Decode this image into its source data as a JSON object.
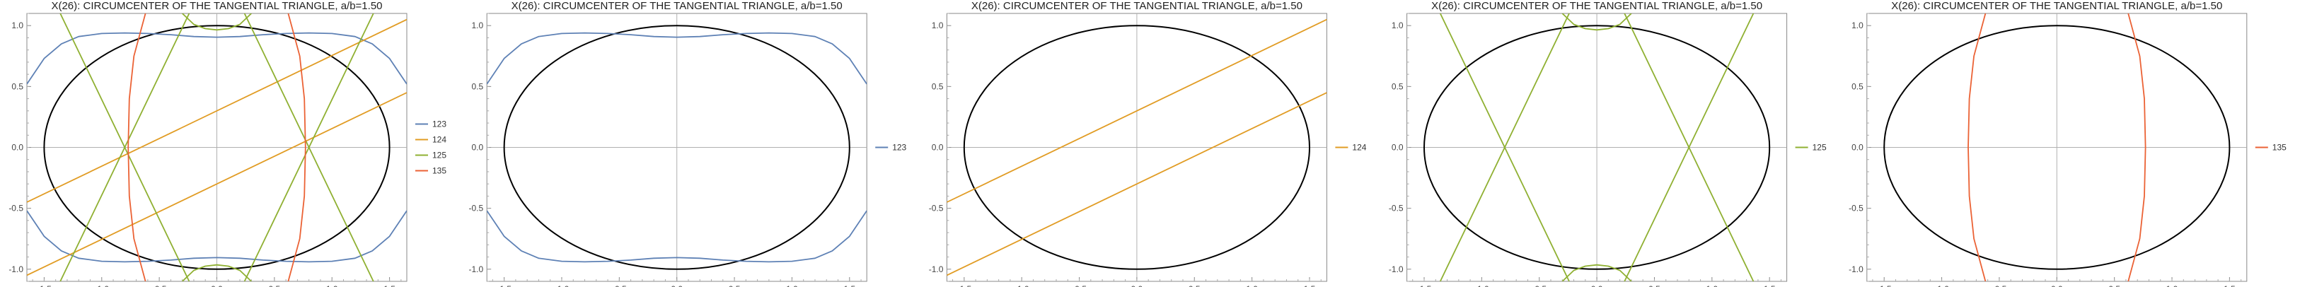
{
  "chart_data": [
    {
      "type": "line",
      "title": "X(26): CIRCUMCENTER OF THE TANGENTIAL TRIANGLE, a/b=1.50",
      "xlabel": "",
      "ylabel": "",
      "xlim": [
        -1.65,
        1.65
      ],
      "ylim": [
        -1.1,
        1.1
      ],
      "xticks": [
        "-1.5",
        "-1.0",
        "-0.5",
        "0.0",
        "0.5",
        "1.0",
        "1.5"
      ],
      "yticks": [
        "-1.0",
        "-0.5",
        "0.0",
        "0.5",
        "1.0"
      ],
      "grid": false,
      "legend": "right",
      "ellipse": {
        "a": 1.5,
        "b": 1.0,
        "color": "#000000"
      },
      "series": [
        {
          "name": "123",
          "color": "#5E81B5",
          "curve": "upper",
          "points": [
            [
              -1.65,
              0.52
            ],
            [
              -1.5,
              0.73
            ],
            [
              -1.35,
              0.85
            ],
            [
              -1.2,
              0.91
            ],
            [
              -1.0,
              0.935
            ],
            [
              -0.8,
              0.94
            ],
            [
              -0.6,
              0.935
            ],
            [
              -0.4,
              0.925
            ],
            [
              -0.2,
              0.91
            ],
            [
              0.0,
              0.905
            ],
            [
              0.2,
              0.91
            ],
            [
              0.4,
              0.925
            ],
            [
              0.6,
              0.935
            ],
            [
              0.8,
              0.94
            ],
            [
              1.0,
              0.935
            ],
            [
              1.2,
              0.91
            ],
            [
              1.35,
              0.85
            ],
            [
              1.5,
              0.73
            ],
            [
              1.65,
              0.52
            ]
          ]
        },
        {
          "name": "123",
          "color": "#5E81B5",
          "curve": "lower",
          "points": [
            [
              -1.65,
              -0.52
            ],
            [
              -1.5,
              -0.73
            ],
            [
              -1.35,
              -0.85
            ],
            [
              -1.2,
              -0.91
            ],
            [
              -1.0,
              -0.935
            ],
            [
              -0.8,
              -0.94
            ],
            [
              -0.6,
              -0.935
            ],
            [
              -0.4,
              -0.925
            ],
            [
              -0.2,
              -0.91
            ],
            [
              0.0,
              -0.905
            ],
            [
              0.2,
              -0.91
            ],
            [
              0.4,
              -0.925
            ],
            [
              0.6,
              -0.935
            ],
            [
              0.8,
              -0.94
            ],
            [
              1.0,
              -0.935
            ],
            [
              1.2,
              -0.91
            ],
            [
              1.35,
              -0.85
            ],
            [
              1.5,
              -0.73
            ],
            [
              1.65,
              -0.52
            ]
          ]
        },
        {
          "name": "124",
          "color": "#E19C24",
          "points": [
            [
              -1.65,
              -0.45
            ],
            [
              1.65,
              1.05
            ]
          ]
        },
        {
          "name": "124",
          "color": "#E19C24",
          "points": [
            [
              -1.65,
              -1.05
            ],
            [
              1.65,
              0.45
            ]
          ]
        },
        {
          "name": "125",
          "color": "#8FB032",
          "points": [
            [
              -1.36,
              -1.1
            ],
            [
              -0.24,
              1.1
            ]
          ]
        },
        {
          "name": "125",
          "color": "#8FB032",
          "points": [
            [
              -1.36,
              1.1
            ],
            [
              -0.24,
              -1.1
            ]
          ]
        },
        {
          "name": "125",
          "color": "#8FB032",
          "points": [
            [
              1.36,
              -1.1
            ],
            [
              0.24,
              1.1
            ]
          ]
        },
        {
          "name": "125",
          "color": "#8FB032",
          "points": [
            [
              1.36,
              1.1
            ],
            [
              0.24,
              -1.1
            ]
          ]
        },
        {
          "name": "125",
          "color": "#8FB032",
          "points": [
            [
              -0.3,
              1.1
            ],
            [
              -0.2,
              1.01
            ],
            [
              -0.1,
              0.975
            ],
            [
              0.0,
              0.965
            ],
            [
              0.1,
              0.975
            ],
            [
              0.2,
              1.01
            ],
            [
              0.3,
              1.1
            ]
          ]
        },
        {
          "name": "125",
          "color": "#8FB032",
          "points": [
            [
              -0.3,
              -1.1
            ],
            [
              -0.2,
              -1.01
            ],
            [
              -0.1,
              -0.975
            ],
            [
              0.0,
              -0.965
            ],
            [
              0.1,
              -0.975
            ],
            [
              0.2,
              -1.01
            ],
            [
              0.3,
              -1.1
            ]
          ]
        },
        {
          "name": "135",
          "color": "#EB6235",
          "points": [
            [
              -0.62,
              -1.1
            ],
            [
              -0.72,
              -0.75
            ],
            [
              -0.76,
              -0.4
            ],
            [
              -0.77,
              0.0
            ],
            [
              -0.76,
              0.4
            ],
            [
              -0.72,
              0.75
            ],
            [
              -0.62,
              1.1
            ]
          ]
        },
        {
          "name": "135",
          "color": "#EB6235",
          "points": [
            [
              0.62,
              -1.1
            ],
            [
              0.72,
              -0.75
            ],
            [
              0.76,
              -0.4
            ],
            [
              0.77,
              0.0
            ],
            [
              0.76,
              0.4
            ],
            [
              0.72,
              0.75
            ],
            [
              0.62,
              1.1
            ]
          ]
        }
      ],
      "legend_entries": [
        {
          "label": "123",
          "color": "#5E81B5"
        },
        {
          "label": "124",
          "color": "#E19C24"
        },
        {
          "label": "125",
          "color": "#8FB032"
        },
        {
          "label": "135",
          "color": "#EB6235"
        }
      ]
    },
    {
      "type": "line",
      "title": "X(26): CIRCUMCENTER OF THE TANGENTIAL TRIANGLE, a/b=1.50",
      "xlabel": "",
      "ylabel": "",
      "xlim": [
        -1.65,
        1.65
      ],
      "ylim": [
        -1.1,
        1.1
      ],
      "xticks": [
        "-1.5",
        "-1.0",
        "-0.5",
        "0.0",
        "0.5",
        "1.0",
        "1.5"
      ],
      "yticks": [
        "-1.0",
        "-0.5",
        "0.0",
        "0.5",
        "1.0"
      ],
      "grid": false,
      "legend": "right",
      "ellipse": {
        "a": 1.5,
        "b": 1.0,
        "color": "#000000"
      },
      "series": [
        {
          "name": "123",
          "color": "#5E81B5",
          "curve": "upper",
          "points": [
            [
              -1.65,
              0.52
            ],
            [
              -1.5,
              0.73
            ],
            [
              -1.35,
              0.85
            ],
            [
              -1.2,
              0.91
            ],
            [
              -1.0,
              0.935
            ],
            [
              -0.8,
              0.94
            ],
            [
              -0.6,
              0.935
            ],
            [
              -0.4,
              0.925
            ],
            [
              -0.2,
              0.91
            ],
            [
              0.0,
              0.905
            ],
            [
              0.2,
              0.91
            ],
            [
              0.4,
              0.925
            ],
            [
              0.6,
              0.935
            ],
            [
              0.8,
              0.94
            ],
            [
              1.0,
              0.935
            ],
            [
              1.2,
              0.91
            ],
            [
              1.35,
              0.85
            ],
            [
              1.5,
              0.73
            ],
            [
              1.65,
              0.52
            ]
          ]
        },
        {
          "name": "123",
          "color": "#5E81B5",
          "curve": "lower",
          "points": [
            [
              -1.65,
              -0.52
            ],
            [
              -1.5,
              -0.73
            ],
            [
              -1.35,
              -0.85
            ],
            [
              -1.2,
              -0.91
            ],
            [
              -1.0,
              -0.935
            ],
            [
              -0.8,
              -0.94
            ],
            [
              -0.6,
              -0.935
            ],
            [
              -0.4,
              -0.925
            ],
            [
              -0.2,
              -0.91
            ],
            [
              0.0,
              -0.905
            ],
            [
              0.2,
              -0.91
            ],
            [
              0.4,
              -0.925
            ],
            [
              0.6,
              -0.935
            ],
            [
              0.8,
              -0.94
            ],
            [
              1.0,
              -0.935
            ],
            [
              1.2,
              -0.91
            ],
            [
              1.35,
              -0.85
            ],
            [
              1.5,
              -0.73
            ],
            [
              1.65,
              -0.52
            ]
          ]
        }
      ],
      "legend_entries": [
        {
          "label": "123",
          "color": "#5E81B5"
        }
      ]
    },
    {
      "type": "line",
      "title": "X(26): CIRCUMCENTER OF THE TANGENTIAL TRIANGLE, a/b=1.50",
      "xlabel": "",
      "ylabel": "",
      "xlim": [
        -1.65,
        1.65
      ],
      "ylim": [
        -1.1,
        1.1
      ],
      "xticks": [
        "-1.5",
        "-1.0",
        "-0.5",
        "0.0",
        "0.5",
        "1.0",
        "1.5"
      ],
      "yticks": [
        "-1.0",
        "-0.5",
        "0.0",
        "0.5",
        "1.0"
      ],
      "grid": false,
      "legend": "right",
      "ellipse": {
        "a": 1.5,
        "b": 1.0,
        "color": "#000000"
      },
      "series": [
        {
          "name": "124",
          "color": "#E19C24",
          "points": [
            [
              -1.65,
              -0.45
            ],
            [
              1.65,
              1.05
            ]
          ]
        },
        {
          "name": "124",
          "color": "#E19C24",
          "points": [
            [
              -1.65,
              -1.05
            ],
            [
              1.65,
              0.45
            ]
          ]
        }
      ],
      "legend_entries": [
        {
          "label": "124",
          "color": "#E19C24"
        }
      ]
    },
    {
      "type": "line",
      "title": "X(26): CIRCUMCENTER OF THE TANGENTIAL TRIANGLE, a/b=1.50",
      "xlabel": "",
      "ylabel": "",
      "xlim": [
        -1.65,
        1.65
      ],
      "ylim": [
        -1.1,
        1.1
      ],
      "xticks": [
        "-1.5",
        "-1.0",
        "-0.5",
        "0.0",
        "0.5",
        "1.0",
        "1.5"
      ],
      "yticks": [
        "-1.0",
        "-0.5",
        "0.0",
        "0.5",
        "1.0"
      ],
      "grid": false,
      "legend": "right",
      "ellipse": {
        "a": 1.5,
        "b": 1.0,
        "color": "#000000"
      },
      "series": [
        {
          "name": "125",
          "color": "#8FB032",
          "points": [
            [
              -1.36,
              -1.1
            ],
            [
              -0.24,
              1.1
            ]
          ]
        },
        {
          "name": "125",
          "color": "#8FB032",
          "points": [
            [
              -1.36,
              1.1
            ],
            [
              -0.24,
              -1.1
            ]
          ]
        },
        {
          "name": "125",
          "color": "#8FB032",
          "points": [
            [
              1.36,
              -1.1
            ],
            [
              0.24,
              1.1
            ]
          ]
        },
        {
          "name": "125",
          "color": "#8FB032",
          "points": [
            [
              1.36,
              1.1
            ],
            [
              0.24,
              -1.1
            ]
          ]
        },
        {
          "name": "125",
          "color": "#8FB032",
          "points": [
            [
              -0.3,
              1.1
            ],
            [
              -0.2,
              1.01
            ],
            [
              -0.1,
              0.975
            ],
            [
              0.0,
              0.965
            ],
            [
              0.1,
              0.975
            ],
            [
              0.2,
              1.01
            ],
            [
              0.3,
              1.1
            ]
          ]
        },
        {
          "name": "125",
          "color": "#8FB032",
          "points": [
            [
              -0.3,
              -1.1
            ],
            [
              -0.2,
              -1.01
            ],
            [
              -0.1,
              -0.975
            ],
            [
              0.0,
              -0.965
            ],
            [
              0.1,
              -0.975
            ],
            [
              0.2,
              -1.01
            ],
            [
              0.3,
              -1.1
            ]
          ]
        }
      ],
      "legend_entries": [
        {
          "label": "125",
          "color": "#8FB032"
        }
      ]
    },
    {
      "type": "line",
      "title": "X(26): CIRCUMCENTER OF THE TANGENTIAL TRIANGLE, a/b=1.50",
      "xlabel": "",
      "ylabel": "",
      "xlim": [
        -1.65,
        1.65
      ],
      "ylim": [
        -1.1,
        1.1
      ],
      "xticks": [
        "-1.5",
        "-1.0",
        "-0.5",
        "0.0",
        "0.5",
        "1.0",
        "1.5"
      ],
      "yticks": [
        "-1.0",
        "-0.5",
        "0.0",
        "0.5",
        "1.0"
      ],
      "grid": false,
      "legend": "right",
      "ellipse": {
        "a": 1.5,
        "b": 1.0,
        "color": "#000000"
      },
      "series": [
        {
          "name": "135",
          "color": "#EB6235",
          "points": [
            [
              -0.62,
              -1.1
            ],
            [
              -0.72,
              -0.75
            ],
            [
              -0.76,
              -0.4
            ],
            [
              -0.77,
              0.0
            ],
            [
              -0.76,
              0.4
            ],
            [
              -0.72,
              0.75
            ],
            [
              -0.62,
              1.1
            ]
          ]
        },
        {
          "name": "135",
          "color": "#EB6235",
          "points": [
            [
              0.62,
              -1.1
            ],
            [
              0.72,
              -0.75
            ],
            [
              0.76,
              -0.4
            ],
            [
              0.77,
              0.0
            ],
            [
              0.76,
              0.4
            ],
            [
              0.72,
              0.75
            ],
            [
              0.62,
              1.1
            ]
          ]
        }
      ],
      "legend_entries": [
        {
          "label": "135",
          "color": "#EB6235"
        }
      ]
    }
  ]
}
